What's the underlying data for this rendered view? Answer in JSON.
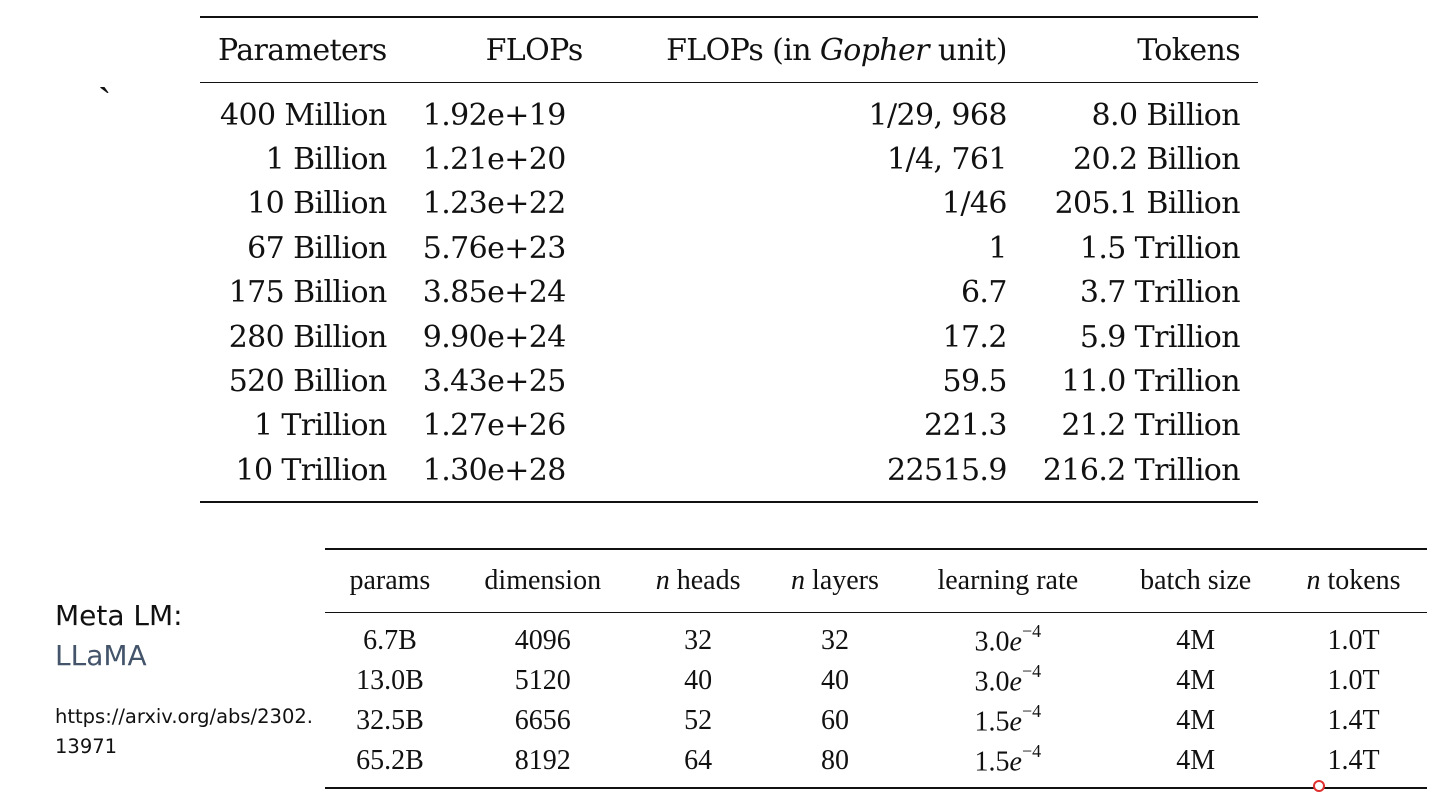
{
  "stray_mark": "`",
  "compute_table": {
    "headers": {
      "parameters": "Parameters",
      "flops": "FLOPs",
      "gopher_prefix": "FLOPs (in ",
      "gopher_italic": "Gopher",
      "gopher_suffix": " unit)",
      "tokens": "Tokens"
    },
    "rows": [
      {
        "parameters": "400 Million",
        "flops": "1.92e+19",
        "gopher": "1/29, 968",
        "tokens": "8.0 Billion"
      },
      {
        "parameters": "1 Billion",
        "flops": "1.21e+20",
        "gopher": "1/4, 761",
        "tokens": "20.2 Billion"
      },
      {
        "parameters": "10 Billion",
        "flops": "1.23e+22",
        "gopher": "1/46",
        "tokens": "205.1 Billion"
      },
      {
        "parameters": "67 Billion",
        "flops": "5.76e+23",
        "gopher": "1",
        "tokens": "1.5 Trillion"
      },
      {
        "parameters": "175 Billion",
        "flops": "3.85e+24",
        "gopher": "6.7",
        "tokens": "3.7 Trillion"
      },
      {
        "parameters": "280 Billion",
        "flops": "9.90e+24",
        "gopher": "17.2",
        "tokens": "5.9 Trillion"
      },
      {
        "parameters": "520 Billion",
        "flops": "3.43e+25",
        "gopher": "59.5",
        "tokens": "11.0 Trillion"
      },
      {
        "parameters": "1 Trillion",
        "flops": "1.27e+26",
        "gopher": "221.3",
        "tokens": "21.2 Trillion"
      },
      {
        "parameters": "10 Trillion",
        "flops": "1.30e+28",
        "gopher": "22515.9",
        "tokens": "216.2 Trillion"
      }
    ]
  },
  "side_label": {
    "title": "Meta LM:",
    "model": "LLaMA",
    "link": "https://arxiv.org/abs/2302.13971",
    "model_color": "#44546a"
  },
  "llama_table": {
    "headers": {
      "params": "params",
      "dimension": "dimension",
      "heads_var": "n",
      "heads": " heads",
      "layers_var": "n",
      "layers": " layers",
      "learning_rate": "learning rate",
      "batch_size": "batch size",
      "tokens_var": "n",
      "tokens": " tokens"
    },
    "rows": [
      {
        "params": "6.7B",
        "dimension": "4096",
        "heads": "32",
        "layers": "32",
        "lr_mantissa": "3.0",
        "lr_base": "e",
        "lr_exp": "−4",
        "batch": "4M",
        "tokens": "1.0T"
      },
      {
        "params": "13.0B",
        "dimension": "5120",
        "heads": "40",
        "layers": "40",
        "lr_mantissa": "3.0",
        "lr_base": "e",
        "lr_exp": "−4",
        "batch": "4M",
        "tokens": "1.0T"
      },
      {
        "params": "32.5B",
        "dimension": "6656",
        "heads": "52",
        "layers": "60",
        "lr_mantissa": "1.5",
        "lr_base": "e",
        "lr_exp": "−4",
        "batch": "4M",
        "tokens": "1.4T"
      },
      {
        "params": "65.2B",
        "dimension": "8192",
        "heads": "64",
        "layers": "80",
        "lr_mantissa": "1.5",
        "lr_base": "e",
        "lr_exp": "−4",
        "batch": "4M",
        "tokens": "1.4T"
      }
    ]
  },
  "cursor_color": "#e03030"
}
